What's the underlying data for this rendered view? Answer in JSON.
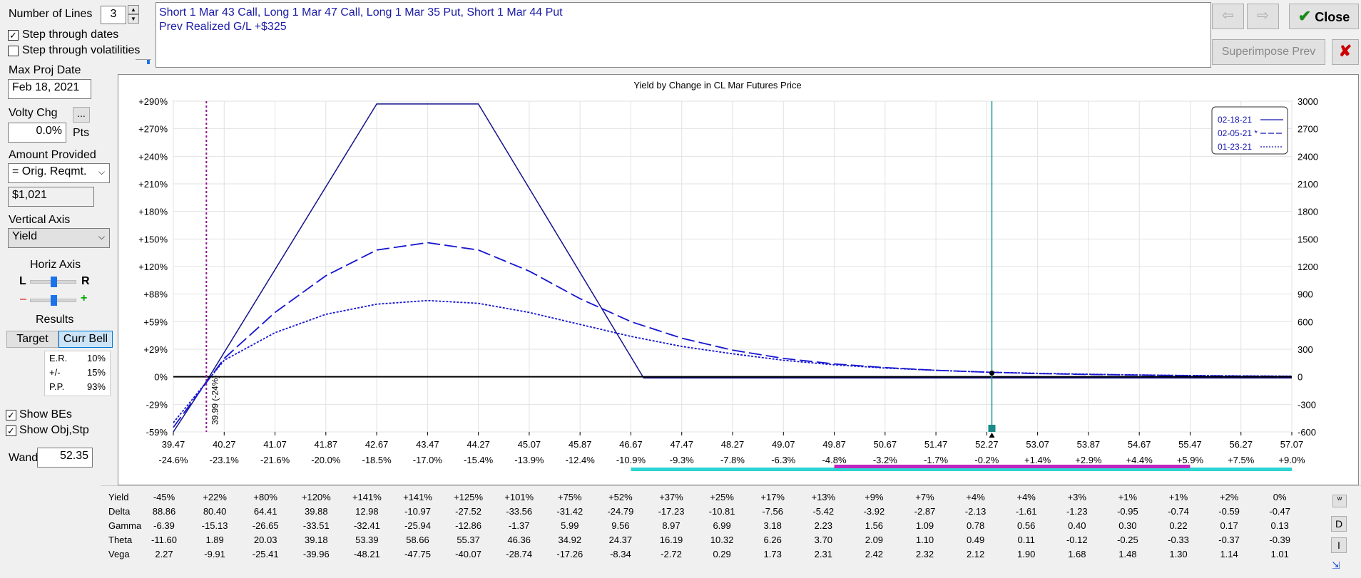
{
  "controls": {
    "num_lines_label": "Number of Lines",
    "num_lines_value": "3",
    "step_dates_label": "Step through dates",
    "step_dates_checked": true,
    "step_vols_label": "Step through volatilities",
    "step_vols_checked": false,
    "max_proj_date_label": "Max Proj Date",
    "max_proj_date_value": "Feb 18, 2021",
    "volty_chg_label": "Volty Chg",
    "volty_chg_btn": "...",
    "volty_chg_value": "0.0%",
    "volty_chg_unit": "Pts",
    "amount_provided_label": "Amount Provided",
    "amount_provided_select": "= Orig. Reqmt.",
    "amount_value": "$1,021",
    "vertical_axis_label": "Vertical Axis",
    "vertical_axis_select": "Yield",
    "horiz_axis_label": "Horiz Axis",
    "horiz_l": "L",
    "horiz_r": "R",
    "horiz_minus": "–",
    "horiz_plus": "+",
    "results_label": "Results",
    "target_tab": "Target",
    "curr_bell_tab": "Curr Bell",
    "results": [
      {
        "k": "E.R.",
        "v": "10%"
      },
      {
        "k": "+/-",
        "v": "15%"
      },
      {
        "k": "P.P.",
        "v": "93%"
      }
    ],
    "show_bes_label": "Show BEs",
    "show_bes_checked": true,
    "show_obj_label": "Show Obj,Stp",
    "show_obj_checked": true,
    "wand_label": "Wand",
    "wand_value": "52.35"
  },
  "description": {
    "line1": "Short 1 Mar 43 Call, Long 1 Mar 47 Call, Long 1 Mar 35 Put, Short 1 Mar 44 Put",
    "line2": "Prev Realized G/L +$325"
  },
  "toolbar": {
    "prev_icon": "arrow-left-icon",
    "next_icon": "arrow-right-icon",
    "close_label": "Close",
    "superimpose_label": "Superimpose Prev",
    "delete_icon": "x-icon"
  },
  "chart_data": {
    "type": "line",
    "title": "Yield by Change in CL Mar Futures Price",
    "x_ticks": [
      "39.47",
      "40.27",
      "41.07",
      "41.87",
      "42.67",
      "43.47",
      "44.27",
      "45.07",
      "45.87",
      "46.67",
      "47.47",
      "48.27",
      "49.07",
      "49.87",
      "50.67",
      "51.47",
      "52.27",
      "53.07",
      "53.87",
      "54.67",
      "55.47",
      "56.27",
      "57.07"
    ],
    "x_pct_ticks": [
      "-24.6%",
      "-23.1%",
      "-21.6%",
      "-20.0%",
      "-18.5%",
      "-17.0%",
      "-15.4%",
      "-13.9%",
      "-12.4%",
      "-10.9%",
      "-9.3%",
      "-7.8%",
      "-6.3%",
      "-4.8%",
      "-3.2%",
      "-1.7%",
      "-0.2%",
      "+1.4%",
      "+2.9%",
      "+4.4%",
      "+5.9%",
      "+7.5%",
      "+9.0%"
    ],
    "x_range": [
      39.47,
      57.07
    ],
    "y_left_ticks": [
      "+290%",
      "+270%",
      "+240%",
      "+210%",
      "+180%",
      "+150%",
      "+120%",
      "+88%",
      "+59%",
      "+29%",
      "0%",
      "-29%",
      "-59%"
    ],
    "y_right_ticks": [
      "3000",
      "2700",
      "2400",
      "2100",
      "1800",
      "1500",
      "1200",
      "900",
      "600",
      "300",
      "0",
      "-300",
      "-600"
    ],
    "y_range": [
      -600,
      3000
    ],
    "breakeven": {
      "x": 39.99,
      "label": "39.99 (-24%)"
    },
    "wand_x": 52.35,
    "legend": [
      "02-18-21",
      "02-05-21 *",
      "01-23-21"
    ],
    "legend_position": "top-right",
    "series": [
      {
        "name": "02-18-21",
        "style": "solid",
        "points": [
          [
            39.47,
            -600
          ],
          [
            40.0,
            -40
          ],
          [
            42.67,
            2970
          ],
          [
            43.47,
            2970
          ],
          [
            44.27,
            2970
          ],
          [
            46.86,
            0
          ],
          [
            57.07,
            0
          ]
        ]
      },
      {
        "name": "02-05-21 *",
        "style": "dashed",
        "points": [
          [
            39.47,
            -550
          ],
          [
            40.27,
            200
          ],
          [
            41.07,
            700
          ],
          [
            41.87,
            1100
          ],
          [
            42.67,
            1380
          ],
          [
            43.47,
            1460
          ],
          [
            44.27,
            1380
          ],
          [
            45.07,
            1150
          ],
          [
            45.87,
            850
          ],
          [
            46.67,
            600
          ],
          [
            47.47,
            420
          ],
          [
            48.27,
            290
          ],
          [
            49.07,
            200
          ],
          [
            49.87,
            140
          ],
          [
            50.67,
            100
          ],
          [
            51.47,
            70
          ],
          [
            52.27,
            50
          ],
          [
            53.07,
            35
          ],
          [
            53.87,
            25
          ],
          [
            54.67,
            18
          ],
          [
            55.47,
            12
          ],
          [
            56.27,
            8
          ],
          [
            57.07,
            5
          ]
        ]
      },
      {
        "name": "01-23-21",
        "style": "dotted",
        "points": [
          [
            39.47,
            -500
          ],
          [
            40.27,
            180
          ],
          [
            41.07,
            480
          ],
          [
            41.87,
            680
          ],
          [
            42.67,
            790
          ],
          [
            43.47,
            830
          ],
          [
            44.27,
            800
          ],
          [
            45.07,
            700
          ],
          [
            45.87,
            570
          ],
          [
            46.67,
            440
          ],
          [
            47.47,
            330
          ],
          [
            48.27,
            250
          ],
          [
            49.07,
            180
          ],
          [
            49.87,
            130
          ],
          [
            50.67,
            95
          ],
          [
            51.47,
            70
          ],
          [
            52.27,
            50
          ],
          [
            53.07,
            38
          ],
          [
            53.87,
            28
          ],
          [
            54.67,
            20
          ],
          [
            55.47,
            14
          ],
          [
            56.27,
            10
          ],
          [
            57.07,
            7
          ]
        ]
      }
    ]
  },
  "greeks": {
    "rows": [
      {
        "label": "Yield",
        "values": [
          "-45%",
          "+22%",
          "+80%",
          "+120%",
          "+141%",
          "+141%",
          "+125%",
          "+101%",
          "+75%",
          "+52%",
          "+37%",
          "+25%",
          "+17%",
          "+13%",
          "+9%",
          "+7%",
          "+4%",
          "+4%",
          "+3%",
          "+1%",
          "+1%",
          "+2%",
          "0%"
        ]
      },
      {
        "label": "Delta",
        "values": [
          "88.86",
          "80.40",
          "64.41",
          "39.88",
          "12.98",
          "-10.97",
          "-27.52",
          "-33.56",
          "-31.42",
          "-24.79",
          "-17.23",
          "-10.81",
          "-7.56",
          "-5.42",
          "-3.92",
          "-2.87",
          "-2.13",
          "-1.61",
          "-1.23",
          "-0.95",
          "-0.74",
          "-0.59",
          "-0.47"
        ]
      },
      {
        "label": "Gamma",
        "values": [
          "-6.39",
          "-15.13",
          "-26.65",
          "-33.51",
          "-32.41",
          "-25.94",
          "-12.86",
          "-1.37",
          "5.99",
          "9.56",
          "8.97",
          "6.99",
          "3.18",
          "2.23",
          "1.56",
          "1.09",
          "0.78",
          "0.56",
          "0.40",
          "0.30",
          "0.22",
          "0.17",
          "0.13"
        ]
      },
      {
        "label": "Theta",
        "values": [
          "-11.60",
          "1.89",
          "20.03",
          "39.18",
          "53.39",
          "58.66",
          "55.37",
          "46.36",
          "34.92",
          "24.37",
          "16.19",
          "10.32",
          "6.26",
          "3.70",
          "2.09",
          "1.10",
          "0.49",
          "0.11",
          "-0.12",
          "-0.25",
          "-0.33",
          "-0.37",
          "-0.39"
        ]
      },
      {
        "label": "Vega",
        "values": [
          "2.27",
          "-9.91",
          "-25.41",
          "-39.96",
          "-48.21",
          "-47.75",
          "-40.07",
          "-28.74",
          "-17.26",
          "-8.34",
          "-2.72",
          "0.29",
          "1.73",
          "2.31",
          "2.42",
          "2.32",
          "2.12",
          "1.90",
          "1.68",
          "1.48",
          "1.30",
          "1.14",
          "1.01"
        ]
      }
    ],
    "side_buttons": [
      "w",
      "D",
      "I"
    ]
  }
}
